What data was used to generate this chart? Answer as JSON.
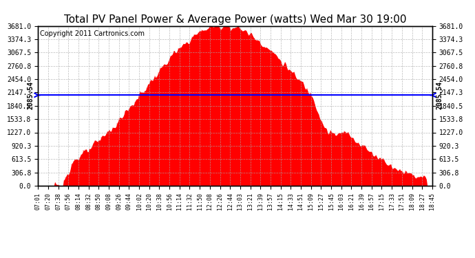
{
  "title": "Total PV Panel Power & Average Power (watts) Wed Mar 30 19:00",
  "copyright": "Copyright 2011 Cartronics.com",
  "y_max": 3681.0,
  "y_min": 0.0,
  "average_line": 2085.54,
  "yticks": [
    0.0,
    306.8,
    613.5,
    920.3,
    1227.0,
    1533.8,
    1840.5,
    2147.3,
    2454.0,
    2760.8,
    3067.5,
    3374.3,
    3681.0
  ],
  "fill_color": "#FF0000",
  "line_color": "#0000FF",
  "bg_color": "#FFFFFF",
  "grid_color": "#AAAAAA",
  "title_fontsize": 11,
  "copyright_fontsize": 7,
  "avg_label_fontsize": 7,
  "xtick_fontsize": 6,
  "ytick_fontsize": 7,
  "xtick_labels": [
    "07:01",
    "07:20",
    "07:38",
    "07:56",
    "08:14",
    "08:32",
    "08:50",
    "09:08",
    "09:26",
    "09:44",
    "10:02",
    "10:20",
    "10:38",
    "10:56",
    "11:14",
    "11:32",
    "11:50",
    "12:08",
    "12:26",
    "12:44",
    "13:03",
    "13:21",
    "13:39",
    "13:57",
    "14:15",
    "14:33",
    "14:51",
    "15:09",
    "15:27",
    "15:45",
    "16:03",
    "16:21",
    "16:39",
    "16:57",
    "17:15",
    "17:33",
    "17:51",
    "18:09",
    "18:27",
    "18:45"
  ]
}
